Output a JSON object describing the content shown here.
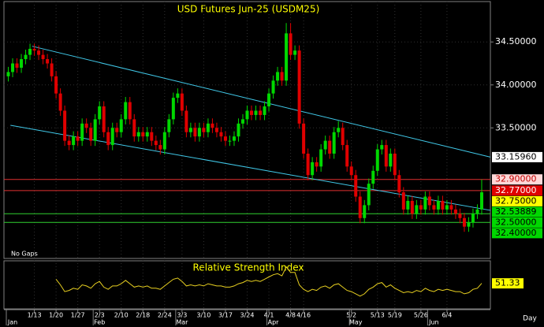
{
  "chart_data": {
    "type": "candlestick",
    "title": "USD Futures Jun-25 (USDM25)",
    "note": "No Gaps",
    "x_unit": "Day",
    "xlim": [
      -1,
      111
    ],
    "ylim": [
      31.98,
      34.97
    ],
    "yticks": [
      {
        "value": 34.5,
        "label": "34.50000"
      },
      {
        "value": 34.0,
        "label": "34.00000"
      },
      {
        "value": 33.5,
        "label": "33.50000"
      }
    ],
    "xticks": [
      {
        "value": 6,
        "label": "1/13"
      },
      {
        "value": 11,
        "label": "1/20"
      },
      {
        "value": 16,
        "label": "1/27"
      },
      {
        "value": 21,
        "label": "2/3"
      },
      {
        "value": 26,
        "label": "2/10"
      },
      {
        "value": 31,
        "label": "2/18"
      },
      {
        "value": 36,
        "label": "2/24"
      },
      {
        "value": 40,
        "label": "3/3"
      },
      {
        "value": 45,
        "label": "3/10"
      },
      {
        "value": 50,
        "label": "3/17"
      },
      {
        "value": 55,
        "label": "3/24"
      },
      {
        "value": 60,
        "label": "4/1"
      },
      {
        "value": 65,
        "label": "4/8"
      },
      {
        "value": 68,
        "label": "4/16"
      },
      {
        "value": 79,
        "label": "5/2"
      },
      {
        "value": 85,
        "label": "5/13"
      },
      {
        "value": 89,
        "label": "5/19"
      },
      {
        "value": 95,
        "label": "5/26"
      },
      {
        "value": 101,
        "label": "6/4"
      }
    ],
    "month_ticks": [
      {
        "value": 1,
        "label": "Jan"
      },
      {
        "value": 21,
        "label": "Feb"
      },
      {
        "value": 40,
        "label": "Mar"
      },
      {
        "value": 61,
        "label": "Apr"
      },
      {
        "value": 80,
        "label": "May"
      },
      {
        "value": 98,
        "label": "Jun"
      }
    ],
    "up_color": "#00d800",
    "down_color": "#e00000",
    "ohlc": [
      [
        34.1,
        34.21,
        34.04,
        34.15
      ],
      [
        34.15,
        34.31,
        34.09,
        34.25
      ],
      [
        34.25,
        34.31,
        34.14,
        34.2
      ],
      [
        34.2,
        34.36,
        34.14,
        34.3
      ],
      [
        34.3,
        34.41,
        34.24,
        34.35
      ],
      [
        34.35,
        34.48,
        34.29,
        34.42
      ],
      [
        34.42,
        34.48,
        34.34,
        34.4
      ],
      [
        34.4,
        34.46,
        34.29,
        34.35
      ],
      [
        34.35,
        34.41,
        34.24,
        34.3
      ],
      [
        34.3,
        34.36,
        34.19,
        34.25
      ],
      [
        34.25,
        34.31,
        34.04,
        34.1
      ],
      [
        34.1,
        34.16,
        33.84,
        33.9
      ],
      [
        33.9,
        33.96,
        33.64,
        33.7
      ],
      [
        33.7,
        33.76,
        33.29,
        33.35
      ],
      [
        33.35,
        33.41,
        33.24,
        33.3
      ],
      [
        33.3,
        33.46,
        33.24,
        33.4
      ],
      [
        33.4,
        33.46,
        33.29,
        33.35
      ],
      [
        33.35,
        33.61,
        33.29,
        33.55
      ],
      [
        33.55,
        33.61,
        33.44,
        33.5
      ],
      [
        33.5,
        33.56,
        33.29,
        33.35
      ],
      [
        33.35,
        33.66,
        33.29,
        33.6
      ],
      [
        33.6,
        33.81,
        33.54,
        33.75
      ],
      [
        33.75,
        33.81,
        33.39,
        33.45
      ],
      [
        33.45,
        33.51,
        33.24,
        33.3
      ],
      [
        33.3,
        33.56,
        33.24,
        33.5
      ],
      [
        33.5,
        33.56,
        33.39,
        33.45
      ],
      [
        33.45,
        33.66,
        33.39,
        33.6
      ],
      [
        33.6,
        33.86,
        33.54,
        33.8
      ],
      [
        33.8,
        33.86,
        33.54,
        33.6
      ],
      [
        33.6,
        33.66,
        33.34,
        33.4
      ],
      [
        33.4,
        33.51,
        33.34,
        33.45
      ],
      [
        33.45,
        33.51,
        33.34,
        33.4
      ],
      [
        33.4,
        33.51,
        33.34,
        33.45
      ],
      [
        33.45,
        33.51,
        33.29,
        33.35
      ],
      [
        33.35,
        33.41,
        33.24,
        33.3
      ],
      [
        33.3,
        33.36,
        33.19,
        33.25
      ],
      [
        33.25,
        33.51,
        33.19,
        33.45
      ],
      [
        33.45,
        33.66,
        33.39,
        33.6
      ],
      [
        33.6,
        33.91,
        33.54,
        33.85
      ],
      [
        33.85,
        33.96,
        33.79,
        33.9
      ],
      [
        33.9,
        33.96,
        33.64,
        33.7
      ],
      [
        33.7,
        33.76,
        33.39,
        33.45
      ],
      [
        33.45,
        33.56,
        33.39,
        33.5
      ],
      [
        33.5,
        33.56,
        33.34,
        33.4
      ],
      [
        33.4,
        33.56,
        33.34,
        33.5
      ],
      [
        33.5,
        33.56,
        33.39,
        33.45
      ],
      [
        33.45,
        33.61,
        33.39,
        33.55
      ],
      [
        33.55,
        33.61,
        33.44,
        33.5
      ],
      [
        33.5,
        33.56,
        33.39,
        33.45
      ],
      [
        33.45,
        33.51,
        33.34,
        33.4
      ],
      [
        33.4,
        33.46,
        33.29,
        33.35
      ],
      [
        33.35,
        33.41,
        33.29,
        33.35
      ],
      [
        33.35,
        33.46,
        33.29,
        33.4
      ],
      [
        33.4,
        33.61,
        33.34,
        33.55
      ],
      [
        33.55,
        33.66,
        33.49,
        33.6
      ],
      [
        33.6,
        33.76,
        33.54,
        33.7
      ],
      [
        33.7,
        33.76,
        33.59,
        33.65
      ],
      [
        33.65,
        33.76,
        33.59,
        33.7
      ],
      [
        33.7,
        33.76,
        33.59,
        33.65
      ],
      [
        33.65,
        33.81,
        33.59,
        33.75
      ],
      [
        33.75,
        33.96,
        33.69,
        33.9
      ],
      [
        33.9,
        34.11,
        33.84,
        34.05
      ],
      [
        34.05,
        34.21,
        33.99,
        34.15
      ],
      [
        34.15,
        34.21,
        33.99,
        34.05
      ],
      [
        34.05,
        34.72,
        33.99,
        34.6
      ],
      [
        34.6,
        34.72,
        34.29,
        34.35
      ],
      [
        34.35,
        34.46,
        34.29,
        34.4
      ],
      [
        34.4,
        34.46,
        33.49,
        33.55
      ],
      [
        33.55,
        33.61,
        33.14,
        33.2
      ],
      [
        33.2,
        33.26,
        32.89,
        32.95
      ],
      [
        32.95,
        33.16,
        32.89,
        33.1
      ],
      [
        33.1,
        33.16,
        32.99,
        33.05
      ],
      [
        33.05,
        33.31,
        32.99,
        33.25
      ],
      [
        33.25,
        33.41,
        33.19,
        33.35
      ],
      [
        33.35,
        33.41,
        33.14,
        33.2
      ],
      [
        33.2,
        33.51,
        33.14,
        33.45
      ],
      [
        33.45,
        33.58,
        33.39,
        33.5
      ],
      [
        33.5,
        33.56,
        33.24,
        33.3
      ],
      [
        33.3,
        33.36,
        32.99,
        33.05
      ],
      [
        33.05,
        33.11,
        32.89,
        32.95
      ],
      [
        32.95,
        33.01,
        32.64,
        32.7
      ],
      [
        32.7,
        32.76,
        32.39,
        32.45
      ],
      [
        32.45,
        32.66,
        32.39,
        32.6
      ],
      [
        32.6,
        32.91,
        32.54,
        32.85
      ],
      [
        32.85,
        33.06,
        32.79,
        33.0
      ],
      [
        33.0,
        33.31,
        32.94,
        33.25
      ],
      [
        33.25,
        33.36,
        33.19,
        33.3
      ],
      [
        33.3,
        33.36,
        32.99,
        33.05
      ],
      [
        33.05,
        33.26,
        32.99,
        33.2
      ],
      [
        33.2,
        33.26,
        32.89,
        32.95
      ],
      [
        32.95,
        33.01,
        32.69,
        32.75
      ],
      [
        32.75,
        32.81,
        32.49,
        32.55
      ],
      [
        32.55,
        32.71,
        32.49,
        32.65
      ],
      [
        32.65,
        32.71,
        32.44,
        32.5
      ],
      [
        32.5,
        32.66,
        32.44,
        32.6
      ],
      [
        32.6,
        32.66,
        32.49,
        32.55
      ],
      [
        32.55,
        32.76,
        32.49,
        32.7
      ],
      [
        32.7,
        32.76,
        32.54,
        32.6
      ],
      [
        32.6,
        32.66,
        32.49,
        32.55
      ],
      [
        32.55,
        32.71,
        32.49,
        32.65
      ],
      [
        32.65,
        32.71,
        32.49,
        32.55
      ],
      [
        32.55,
        32.66,
        32.49,
        32.6
      ],
      [
        32.6,
        32.66,
        32.49,
        32.55
      ],
      [
        32.55,
        32.61,
        32.44,
        32.5
      ],
      [
        32.5,
        32.56,
        32.39,
        32.45
      ],
      [
        32.45,
        32.51,
        32.29,
        32.35
      ],
      [
        32.35,
        32.46,
        32.29,
        32.4
      ],
      [
        32.4,
        32.56,
        32.34,
        32.5
      ],
      [
        32.5,
        32.61,
        32.44,
        32.55
      ],
      [
        32.55,
        32.9,
        32.49,
        32.75
      ]
    ],
    "trendline_color": "#40c8e8",
    "trendlines": [
      {
        "start": [
          5.5,
          34.45
        ],
        "end": [
          111,
          33.16
        ]
      },
      {
        "start": [
          0.5,
          33.53
        ],
        "end": [
          111,
          32.54
        ]
      }
    ],
    "price_labels": [
      {
        "value": 33.1596,
        "label": "33.15960",
        "color": "#ffffff",
        "text_color": "#000000"
      },
      {
        "value": 32.9,
        "label": "32.90000",
        "color": "#ffd8d8",
        "text_color": "#c00000",
        "line_color": "#e03030"
      },
      {
        "value": 32.77,
        "label": "32.77000",
        "color": "#e00000",
        "text_color": "#ffffff",
        "line_color": "#e03030"
      },
      {
        "value": 32.75,
        "label": "32.75000",
        "color": "#ffff00",
        "text_color": "#000000"
      },
      {
        "value": 32.53889,
        "label": "32.53889",
        "color": "#00d800",
        "text_color": "#000000"
      },
      {
        "value": 32.5,
        "label": "32.50000",
        "color": "#00d800",
        "text_color": "#000000",
        "line_color": "#30d030"
      },
      {
        "value": 32.4,
        "label": "32.40000",
        "color": "#00d800",
        "text_color": "#000000",
        "line_color": "#30d030"
      }
    ],
    "rsi": {
      "title": "Relative Strength Index",
      "color": "#e8d020",
      "label_color": "#ffff00",
      "ylim": [
        30,
        70
      ],
      "values": [
        null,
        null,
        null,
        null,
        null,
        null,
        null,
        null,
        null,
        null,
        null,
        55,
        50,
        44,
        45,
        47,
        46,
        50,
        49,
        47,
        51,
        53,
        48,
        46,
        49,
        49,
        51,
        54,
        51,
        48,
        49,
        48,
        49,
        47,
        47,
        46,
        49,
        52,
        55,
        56,
        53,
        49,
        50,
        49,
        50,
        49,
        51,
        50,
        49,
        49,
        48,
        48,
        49,
        51,
        52,
        54,
        53,
        54,
        53,
        55,
        57,
        59,
        60,
        58,
        66,
        61,
        61,
        50,
        46,
        44,
        46,
        45,
        48,
        49,
        47,
        50,
        51,
        48,
        45,
        44,
        42,
        40,
        42,
        46,
        48,
        51,
        52,
        48,
        50,
        47,
        45,
        43,
        44,
        43,
        45,
        44,
        47,
        45,
        44,
        46,
        45,
        46,
        45,
        44,
        44,
        42,
        43,
        46,
        47,
        51.33
      ]
    }
  }
}
